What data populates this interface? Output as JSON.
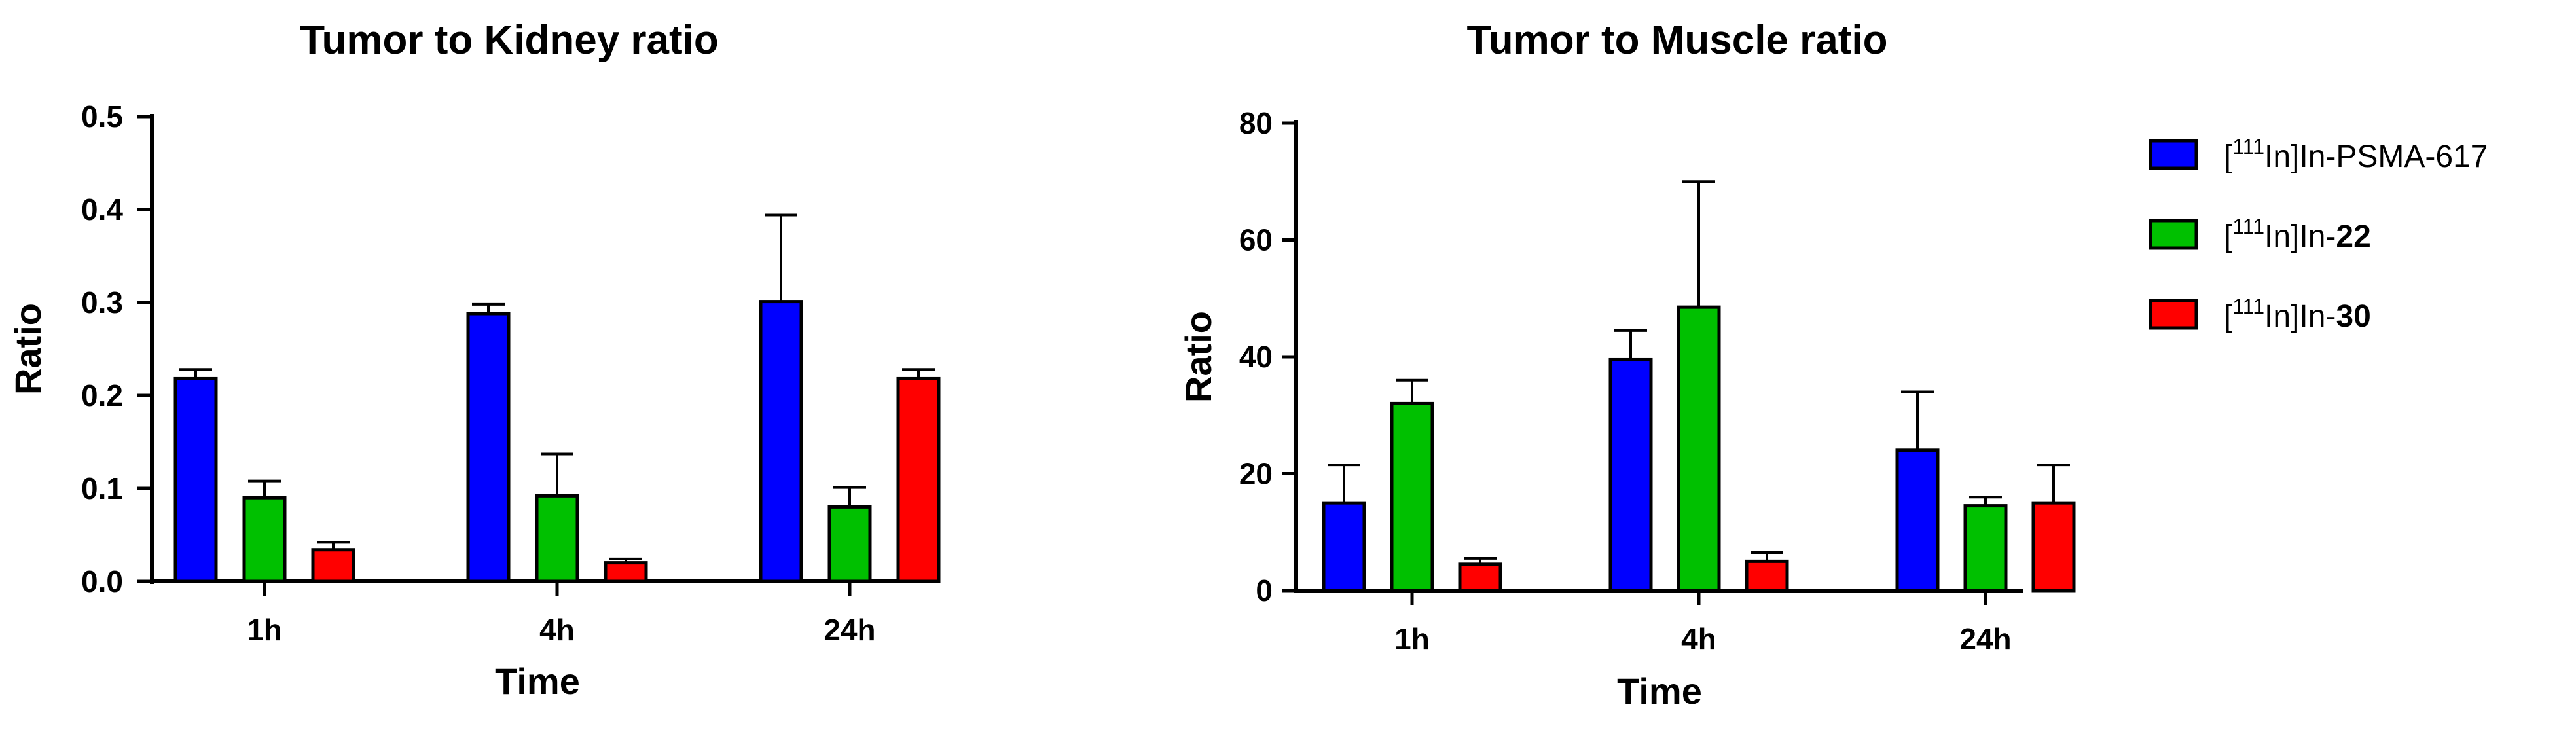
{
  "chart_data": [
    {
      "type": "bar",
      "title": "Tumor to Kidney ratio",
      "xlabel": "Time",
      "ylabel": "Ratio",
      "ylim": [
        0,
        0.5
      ],
      "yticks": [
        "0.0",
        "0.1",
        "0.2",
        "0.3",
        "0.4",
        "0.5"
      ],
      "categories": [
        "1h",
        "4h",
        "24h"
      ],
      "series": [
        {
          "name": "[111In]In-PSMA-617",
          "values": [
            0.218,
            0.288,
            0.301
          ],
          "errors": [
            0.01,
            0.01,
            0.093
          ],
          "color": "#0000ff"
        },
        {
          "name": "[111In]In-22",
          "values": [
            0.09,
            0.092,
            0.08
          ],
          "errors": [
            0.018,
            0.045,
            0.021
          ],
          "color": "#00c000"
        },
        {
          "name": "[111In]In-30",
          "values": [
            0.034,
            0.02,
            0.218
          ],
          "errors": [
            0.008,
            0.004,
            0.01
          ],
          "color": "#ff0000"
        }
      ]
    },
    {
      "type": "bar",
      "title": "Tumor to Muscle ratio",
      "xlabel": "Time",
      "ylabel": "Ratio",
      "ylim": [
        0,
        80
      ],
      "yticks": [
        "0",
        "20",
        "40",
        "60",
        "80"
      ],
      "categories": [
        "1h",
        "4h",
        "24h"
      ],
      "series": [
        {
          "name": "[111In]In-PSMA-617",
          "values": [
            15.0,
            39.5,
            24.0
          ],
          "errors": [
            6.5,
            5.0,
            10.0
          ],
          "color": "#0000ff"
        },
        {
          "name": "[111In]In-22",
          "values": [
            32.0,
            48.5,
            14.5
          ],
          "errors": [
            4.0,
            21.5,
            1.5
          ],
          "color": "#00c000"
        },
        {
          "name": "[111In]In-30",
          "values": [
            4.5,
            5.0,
            15.0
          ],
          "errors": [
            1.0,
            1.5,
            6.5
          ],
          "color": "#ff0000"
        }
      ]
    }
  ],
  "legend": {
    "placement": "right",
    "items": [
      {
        "pre": "[",
        "sup": "111",
        "post": "In]In-",
        "bold": "PSMA-617",
        "bold_is_bold": false,
        "color": "#0000ff"
      },
      {
        "pre": "[",
        "sup": "111",
        "post": "In]In-",
        "bold": "22",
        "bold_is_bold": true,
        "color": "#00c000"
      },
      {
        "pre": "[",
        "sup": "111",
        "post": "In]In-",
        "bold": "30",
        "bold_is_bold": true,
        "color": "#ff0000"
      }
    ]
  }
}
